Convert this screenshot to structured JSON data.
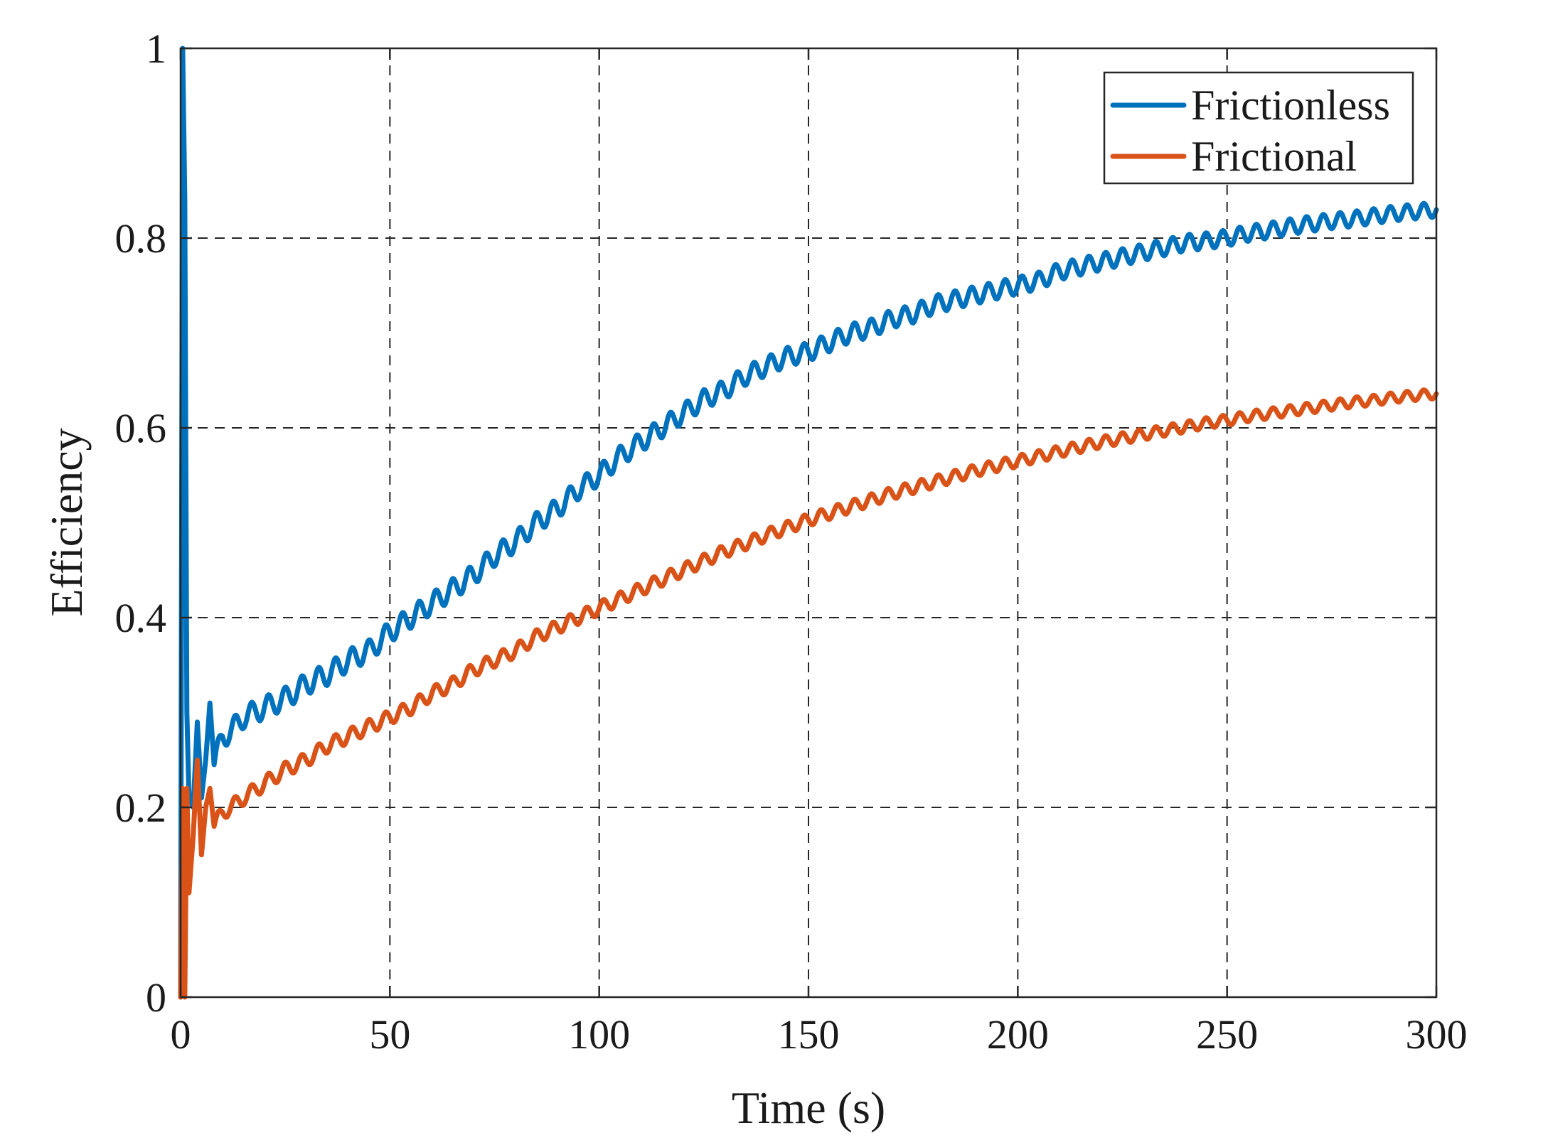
{
  "chart_data": {
    "type": "line",
    "title": "",
    "xlabel": "Time (s)",
    "ylabel": "Efficiency",
    "xlim": [
      0,
      300
    ],
    "ylim": [
      0,
      1
    ],
    "x_ticks": [
      0,
      50,
      100,
      150,
      200,
      250,
      300
    ],
    "y_ticks": [
      0,
      0.2,
      0.4,
      0.6,
      0.8,
      1
    ],
    "x_tick_labels": [
      "0",
      "50",
      "100",
      "150",
      "200",
      "250",
      "300"
    ],
    "y_tick_labels": [
      "0",
      "0.2",
      "0.4",
      "0.6",
      "0.8",
      "1"
    ],
    "grid": true,
    "grid_style": "dashed",
    "legend_position": "top-right",
    "series": [
      {
        "name": "Frictionless",
        "color": "#0072BD",
        "x": [
          0,
          0.5,
          1,
          1.5,
          2,
          3,
          4,
          5,
          6,
          7,
          8,
          10,
          12,
          15,
          20,
          25,
          30,
          35,
          40,
          45,
          50,
          55,
          60,
          65,
          70,
          75,
          80,
          85,
          90,
          95,
          100,
          105,
          110,
          115,
          120,
          125,
          130,
          135,
          140,
          145,
          150,
          155,
          160,
          165,
          170,
          175,
          180,
          185,
          190,
          195,
          200,
          205,
          210,
          215,
          220,
          225,
          230,
          235,
          240,
          245,
          250,
          255,
          260,
          265,
          270,
          275,
          280,
          285,
          290,
          295,
          300
        ],
        "y": [
          0,
          1.0,
          0.84,
          0.3,
          0.21,
          0.2,
          0.29,
          0.21,
          0.25,
          0.31,
          0.245,
          0.275,
          0.28,
          0.295,
          0.305,
          0.315,
          0.33,
          0.34,
          0.355,
          0.365,
          0.385,
          0.4,
          0.415,
          0.43,
          0.445,
          0.465,
          0.48,
          0.5,
          0.515,
          0.535,
          0.55,
          0.57,
          0.585,
          0.6,
          0.615,
          0.63,
          0.64,
          0.655,
          0.665,
          0.675,
          0.68,
          0.69,
          0.7,
          0.705,
          0.715,
          0.72,
          0.73,
          0.735,
          0.74,
          0.745,
          0.75,
          0.755,
          0.765,
          0.77,
          0.775,
          0.78,
          0.785,
          0.79,
          0.795,
          0.797,
          0.8,
          0.805,
          0.808,
          0.812,
          0.815,
          0.818,
          0.82,
          0.823,
          0.826,
          0.828,
          0.83
        ],
        "oscillation_amplitude": 0.012
      },
      {
        "name": "Frictional",
        "color": "#D95319",
        "x": [
          0,
          0.5,
          1,
          1.5,
          2,
          3,
          4,
          5,
          6,
          7,
          8,
          10,
          12,
          15,
          20,
          25,
          30,
          35,
          40,
          45,
          50,
          55,
          60,
          65,
          70,
          75,
          80,
          85,
          90,
          95,
          100,
          105,
          110,
          115,
          120,
          125,
          130,
          135,
          140,
          145,
          150,
          155,
          160,
          165,
          170,
          175,
          180,
          185,
          190,
          195,
          200,
          205,
          210,
          215,
          220,
          225,
          230,
          235,
          240,
          245,
          250,
          255,
          260,
          265,
          270,
          275,
          280,
          285,
          290,
          295,
          300
        ],
        "y": [
          0,
          0.22,
          0.0,
          0.22,
          0.11,
          0.17,
          0.25,
          0.15,
          0.2,
          0.22,
          0.18,
          0.195,
          0.2,
          0.21,
          0.225,
          0.24,
          0.25,
          0.265,
          0.275,
          0.285,
          0.295,
          0.305,
          0.32,
          0.33,
          0.345,
          0.355,
          0.365,
          0.38,
          0.39,
          0.4,
          0.41,
          0.42,
          0.43,
          0.44,
          0.45,
          0.46,
          0.47,
          0.478,
          0.487,
          0.495,
          0.503,
          0.51,
          0.517,
          0.524,
          0.531,
          0.537,
          0.543,
          0.549,
          0.555,
          0.56,
          0.565,
          0.57,
          0.575,
          0.58,
          0.585,
          0.589,
          0.593,
          0.597,
          0.601,
          0.605,
          0.608,
          0.612,
          0.615,
          0.618,
          0.621,
          0.624,
          0.627,
          0.629,
          0.632,
          0.634,
          0.636
        ],
        "oscillation_amplitude": 0.008
      }
    ]
  }
}
